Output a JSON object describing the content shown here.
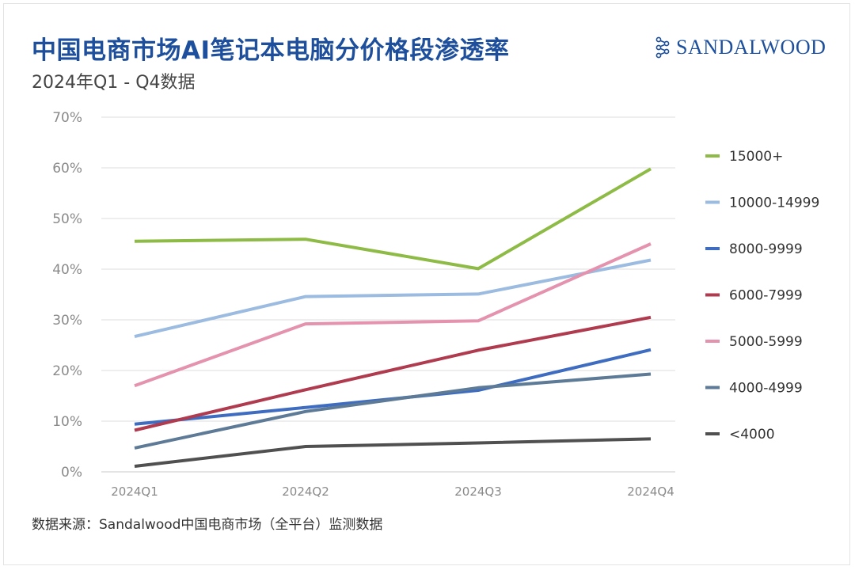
{
  "title": "中国电商市场AI笔记本电脑分价格段渗透率",
  "subtitle": "2024年Q1 - Q4数据",
  "brand": {
    "name": "SANDALWOOD",
    "icon": "sandalwood-logo-icon",
    "color": "#1d4f9c"
  },
  "source": "数据来源：Sandalwood中国电商市场（全平台）监测数据",
  "chart_data": {
    "type": "line",
    "title": "中国电商市场AI笔记本电脑分价格段渗透率",
    "subtitle": "2024年Q1 - Q4数据",
    "categories": [
      "2024Q1",
      "2024Q2",
      "2024Q3",
      "2024Q4"
    ],
    "ylim": [
      0,
      70
    ],
    "yticks": [
      0,
      10,
      20,
      30,
      40,
      50,
      60,
      70
    ],
    "ytick_labels": [
      "0%",
      "10%",
      "20%",
      "30%",
      "40%",
      "50%",
      "60%",
      "70%"
    ],
    "y_unit": "%",
    "grid": true,
    "legend_position": "right",
    "series": [
      {
        "name": "15000+",
        "color": "#8dbb45",
        "values": [
          45.5,
          45.9,
          40.1,
          59.8
        ]
      },
      {
        "name": "10000-14999",
        "color": "#9bbbe0",
        "values": [
          26.7,
          34.6,
          35.1,
          41.8
        ]
      },
      {
        "name": "8000-9999",
        "color": "#3d6cc0",
        "values": [
          9.4,
          12.7,
          16.1,
          24.1
        ]
      },
      {
        "name": "6000-7999",
        "color": "#b03a4e",
        "values": [
          8.2,
          16.2,
          24.0,
          30.5
        ]
      },
      {
        "name": "5000-5999",
        "color": "#e492ad",
        "values": [
          17.0,
          29.2,
          29.8,
          45.0
        ]
      },
      {
        "name": "4000-4999",
        "color": "#5d7a97",
        "values": [
          4.7,
          11.9,
          16.6,
          19.3
        ]
      },
      {
        "name": "<4000",
        "color": "#505050",
        "values": [
          1.1,
          5.0,
          5.7,
          6.5
        ]
      }
    ]
  }
}
